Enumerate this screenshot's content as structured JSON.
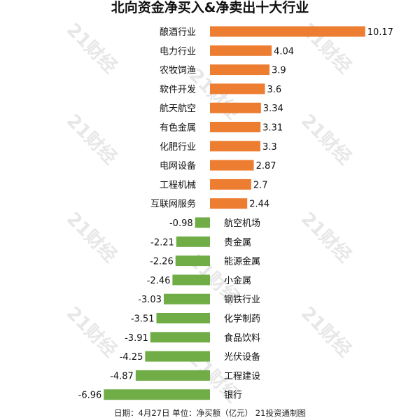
{
  "title": "北向资金净买入&净卖出十大行业",
  "footer": "日期：4月27日 单位：净买额（亿元） 21投资通制图",
  "watermark": "21财经",
  "colors": {
    "positive": "#ed7d31",
    "negative": "#70ad47"
  },
  "chart_data": {
    "type": "bar",
    "orientation": "horizontal",
    "title": "北向资金净买入&净卖出十大行业",
    "categories": [
      "酿酒行业",
      "电力行业",
      "农牧饲渔",
      "软件开发",
      "航天航空",
      "有色金属",
      "化肥行业",
      "电网设备",
      "工程机械",
      "互联网服务",
      "航空机场",
      "贵金属",
      "能源金属",
      "小金属",
      "钢铁行业",
      "化学制药",
      "食品饮料",
      "光伏设备",
      "工程建设",
      "银行"
    ],
    "values": [
      10.17,
      4.04,
      3.9,
      3.6,
      3.34,
      3.31,
      3.3,
      2.87,
      2.7,
      2.44,
      -0.98,
      -2.21,
      -2.26,
      -2.46,
      -3.03,
      -3.51,
      -3.91,
      -4.25,
      -4.87,
      -6.96
    ],
    "value_labels": [
      "10.17",
      "4.04",
      "3.9",
      "3.6",
      "3.34",
      "3.31",
      "3.3",
      "2.87",
      "2.7",
      "2.44",
      "-0.98",
      "-2.21",
      "-2.26",
      "-2.46",
      "-3.03",
      "-3.51",
      "-3.91",
      "-4.25",
      "-4.87",
      "-6.96"
    ],
    "xlim": [
      -7.5,
      10.17
    ],
    "grid": false,
    "legend": "none"
  }
}
